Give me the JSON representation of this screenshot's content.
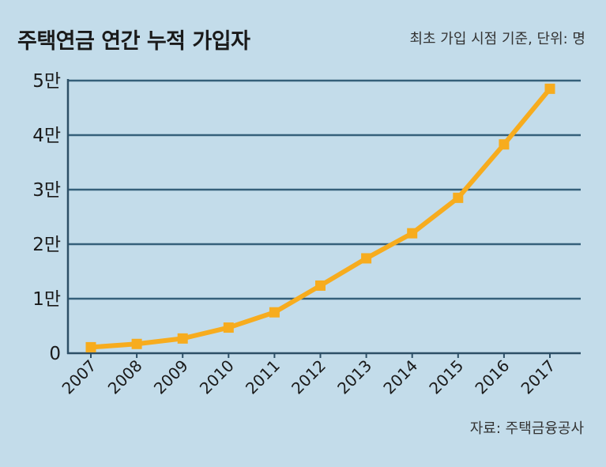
{
  "chart_data": {
    "type": "line",
    "title": "주택연금 연간 누적 가입자",
    "subtitle": "최초 가입 시점 기준, 단위: 명",
    "source": "자료: 주택금융공사",
    "categories": [
      "2007",
      "2008",
      "2009",
      "2010",
      "2011",
      "2012",
      "2013",
      "2014",
      "2015",
      "2016",
      "2017"
    ],
    "series": [
      {
        "values": [
          1100,
          1700,
          2700,
          4700,
          7500,
          12400,
          17400,
          22000,
          28500,
          38300,
          48500
        ]
      }
    ],
    "y_ticks": [
      {
        "value": 0,
        "label": "0"
      },
      {
        "value": 10000,
        "label": "1만"
      },
      {
        "value": 20000,
        "label": "2만"
      },
      {
        "value": 30000,
        "label": "3만"
      },
      {
        "value": 40000,
        "label": "4만"
      },
      {
        "value": 50000,
        "label": "5만"
      }
    ],
    "ylim": [
      0,
      50000
    ],
    "grid": true,
    "colors": {
      "background": "#c3dcea",
      "line": "#f7ac1e",
      "grid": "#35607a",
      "axis": "#2d4f66"
    }
  }
}
